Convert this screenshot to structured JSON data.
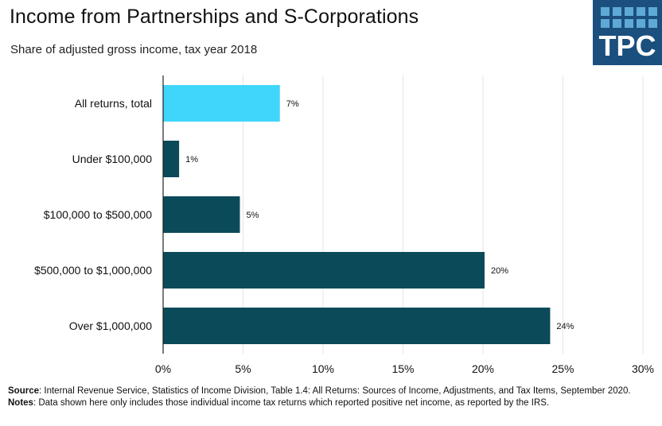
{
  "header": {
    "title": "Income from Partnerships and S-Corporations",
    "subtitle": "Share of adjusted gross income, tax year 2018"
  },
  "logo": {
    "text": "TPC",
    "bg_color": "#1b4f7e",
    "square_color": "#5ea9d6"
  },
  "chart_data": {
    "type": "bar",
    "orientation": "horizontal",
    "categories": [
      "All returns, total",
      "Under $100,000",
      "$100,000 to $500,000",
      "$500,000 to $1,000,000",
      "Over $1,000,000"
    ],
    "values": [
      7.3,
      1.0,
      4.8,
      20.1,
      24.2
    ],
    "value_labels": [
      "7%",
      "1%",
      "5%",
      "20%",
      "24%"
    ],
    "bar_colors": [
      "#40d6fb",
      "#0b4a59",
      "#0b4a59",
      "#0b4a59",
      "#0b4a59"
    ],
    "x_ticks": [
      0,
      5,
      10,
      15,
      20,
      25,
      30
    ],
    "x_tick_labels": [
      "0%",
      "5%",
      "10%",
      "15%",
      "20%",
      "25%",
      "30%"
    ],
    "xlim": [
      0,
      30
    ],
    "grid": true,
    "grid_color": "#e4e4e4",
    "title": "Income from Partnerships and S-Corporations",
    "xlabel": "",
    "ylabel": ""
  },
  "footer": {
    "source_label": "Source",
    "source_text": ": Internal Revenue Service, Statistics of Income Division, Table 1.4: All Returns: Sources of Income, Adjustments, and Tax Items, September 2020.",
    "notes_label": "Notes",
    "notes_text": ": Data shown here only includes those individual income tax returns which reported positive net income, as reported by the IRS."
  }
}
